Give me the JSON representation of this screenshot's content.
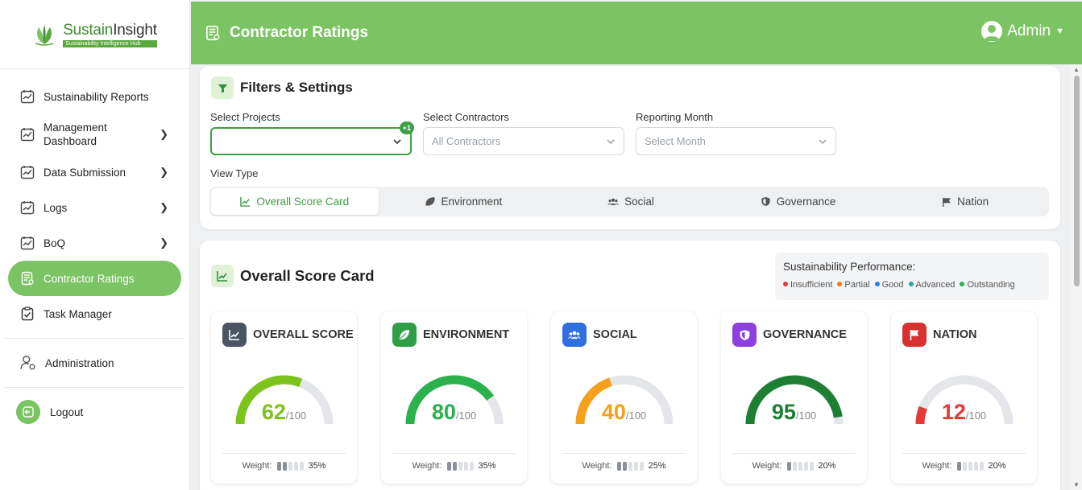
{
  "brand": {
    "name_part1": "Sustain",
    "name_part2": "Insight",
    "tagline": "Sustainability Intelligence Hub"
  },
  "sidebar": {
    "items": [
      {
        "label": "Sustainability Reports",
        "chevron": false
      },
      {
        "label": "Management Dashboard",
        "chevron": true
      },
      {
        "label": "Data Submission",
        "chevron": true
      },
      {
        "label": "Logs",
        "chevron": true
      },
      {
        "label": "BoQ",
        "chevron": true
      },
      {
        "label": "Contractor Ratings",
        "chevron": false,
        "active": true
      },
      {
        "label": "Task Manager",
        "chevron": false
      }
    ],
    "administration": "Administration",
    "logout": "Logout"
  },
  "header": {
    "title": "Contractor Ratings",
    "user": "Admin"
  },
  "filters": {
    "title": "Filters & Settings",
    "projects_label": "Select Projects",
    "projects_badge": "+1",
    "contractors_label": "Select Contractors",
    "contractors_placeholder": "All Contractors",
    "month_label": "Reporting Month",
    "month_placeholder": "Select Month",
    "view_type_label": "View Type",
    "tabs": [
      "Overall Score Card",
      "Environment",
      "Social",
      "Governance",
      "Nation"
    ]
  },
  "scorecard": {
    "title": "Overall Score Card",
    "legend_title": "Sustainability Performance:",
    "legend": [
      {
        "label": "Insufficient",
        "color": "#e53935"
      },
      {
        "label": "Partial",
        "color": "#f57c00"
      },
      {
        "label": "Good",
        "color": "#1e88e5"
      },
      {
        "label": "Advanced",
        "color": "#26a69a"
      },
      {
        "label": "Outstanding",
        "color": "#2bb24c"
      }
    ],
    "weight_label": "Weight:",
    "metrics": [
      {
        "label": "OVERALL SCORE",
        "score": 62,
        "denominator": "/100",
        "weight": "35%",
        "weight_level": 2,
        "color": "#7cc41c",
        "icon_bg": "#4a5560",
        "icon": "chart-line-icon"
      },
      {
        "label": "ENVIRONMENT",
        "score": 80,
        "denominator": "/100",
        "weight": "35%",
        "weight_level": 2,
        "color": "#2bb24c",
        "icon_bg": "#2e9e47",
        "icon": "leaf-icon"
      },
      {
        "label": "SOCIAL",
        "score": 40,
        "denominator": "/100",
        "weight": "25%",
        "weight_level": 2,
        "color": "#f5a01a",
        "icon_bg": "#2f6fe0",
        "icon": "users-icon"
      },
      {
        "label": "GOVERNANCE",
        "score": 95,
        "denominator": "/100",
        "weight": "20%",
        "weight_level": 1,
        "color": "#1e7e34",
        "icon_bg": "#8e3fe0",
        "icon": "shield-icon"
      },
      {
        "label": "NATION",
        "score": 12,
        "denominator": "/100",
        "weight": "20%",
        "weight_level": 1,
        "color": "#e53935",
        "icon_bg": "#d93030",
        "icon": "flag-icon"
      }
    ]
  }
}
